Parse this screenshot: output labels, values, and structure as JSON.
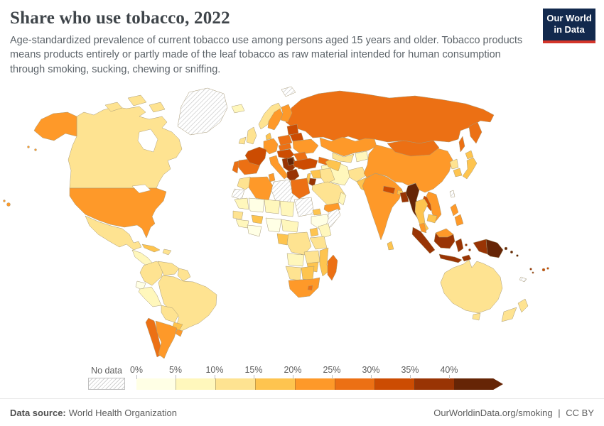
{
  "header": {
    "title": "Share who use tobacco, 2022",
    "subtitle": "Age-standardized prevalence of current tobacco use among persons aged 15 years and older. Tobacco products means products entirely or partly made of the leaf tobacco as raw material intended for human consumption through smoking, sucking, chewing or sniffing.",
    "logo": {
      "line1": "Our World",
      "line2": "in Data",
      "bg_color": "#12294d",
      "accent_color": "#d4352a"
    }
  },
  "legend": {
    "no_data_label": "No data"
  },
  "footer": {
    "source_label": "Data source:",
    "source_value": "World Health Organization",
    "link": "OurWorldinData.org/smoking",
    "separator": "|",
    "license": "CC BY"
  },
  "chart_data": {
    "type": "choropleth_map",
    "title": "Share who use tobacco, 2022",
    "year": "2022",
    "unit": "%",
    "legend_tick_labels": [
      "0%",
      "5%",
      "10%",
      "15%",
      "20%",
      "25%",
      "30%",
      "35%",
      "40%"
    ],
    "legend_bins": [
      {
        "range": "0-5%",
        "color": "#FFFFE5"
      },
      {
        "range": "5-10%",
        "color": "#FFF7BC"
      },
      {
        "range": "10-15%",
        "color": "#FEE391"
      },
      {
        "range": "15-20%",
        "color": "#FEC44F"
      },
      {
        "range": "20-25%",
        "color": "#FE9929"
      },
      {
        "range": "25-30%",
        "color": "#EC7014"
      },
      {
        "range": "30-35%",
        "color": "#CC4C02"
      },
      {
        "range": "35-40%",
        "color": "#993404"
      },
      {
        "range": "40%+",
        "color": "#662506"
      }
    ],
    "palette": {
      "0-5%": "#FFFFE5",
      "5-10%": "#FFF7BC",
      "10-15%": "#FEE391",
      "15-20%": "#FEC44F",
      "20-25%": "#FE9929",
      "25-30%": "#EC7014",
      "30-35%": "#CC4C02",
      "35-40%": "#993404",
      "40%+": "#662506"
    },
    "countries": {
      "greenland": "no-data",
      "canada": "10-15%",
      "united-states": "20-25%",
      "mexico": "10-15%",
      "central-america": "5-10%",
      "cuba": "15-20%",
      "hispaniola": "10-15%",
      "colombia": "10-15%",
      "venezuela": "10-15%",
      "guyanas": "10-15%",
      "ecuador": "0-5%",
      "peru": "5-10%",
      "brazil": "10-15%",
      "bolivia": "10-15%",
      "paraguay": "15-20%",
      "chile": "25-30%",
      "argentina": "20-25%",
      "uruguay": "20-25%",
      "iceland": "5-10%",
      "united-kingdom": "10-15%",
      "ireland": "10-15%",
      "norway": "10-15%",
      "sweden": "20-25%",
      "finland": "20-25%",
      "denmark": "15-20%",
      "baltics": "30-35%",
      "germany": "20-25%",
      "poland": "25-30%",
      "belarus": "30-35%",
      "ukraine": "20-25%",
      "france": "30-35%",
      "spain": "25-30%",
      "portugal": "25-30%",
      "italy": "20-25%",
      "czech-slovakia": "25-30%",
      "austria-hungary": "30-35%",
      "balkans": "35-40%",
      "serbia": "40%+",
      "romania": "25-30%",
      "bulgaria": "30-35%",
      "greece": "35-40%",
      "russia": "25-30%",
      "svalbard": "no-data",
      "turkey": "30-35%",
      "caucasus": "25-30%",
      "syria": "15-20%",
      "lebanon-israel": "15-20%",
      "jordan": "35-40%",
      "iraq": "10-15%",
      "saudi-arabia": "10-15%",
      "yemen": "20-25%",
      "oman": "5-10%",
      "iran": "5-10%",
      "kazakhstan": "20-25%",
      "uzbekistan": "10-15%",
      "turkmenistan": "15-20%",
      "kyrgyzstan-tajikistan": "5-10%",
      "afghanistan": "10-15%",
      "pakistan": "15-20%",
      "india": "20-25%",
      "nepal": "30-35%",
      "bhutan": "15-20%",
      "bangladesh": "35-40%",
      "sri-lanka": "15-20%",
      "myanmar": "40%+",
      "mongolia": "25-30%",
      "china": "20-25%",
      "north-korea": "10-15%",
      "south-korea": "15-20%",
      "japan": "15-20%",
      "taiwan": "no-data",
      "thailand": "15-20%",
      "laos": "30-35%",
      "vietnam": "20-25%",
      "cambodia": "15-20%",
      "malaysia": "20-25%",
      "philippines": "20-25%",
      "indonesia": "35-40%",
      "papua-new-guinea": "40%+",
      "timor-leste": "35-40%",
      "solomon-islands": "40%+",
      "vanuatu": "35-40%",
      "fiji": "30-35%",
      "new-caledonia": "no-data",
      "morocco": "10-15%",
      "western-sahara": "no-data",
      "algeria": "20-25%",
      "tunisia": "20-25%",
      "libya": "no-data",
      "egypt": "25-30%",
      "mauritania": "5-10%",
      "mali": "0-5%",
      "niger": "5-10%",
      "chad": "5-10%",
      "sudan": "no-data",
      "eritrea": "15-20%",
      "ethiopia": "0-5%",
      "somalia": "no-data",
      "senegal": "10-15%",
      "guinea": "5-10%",
      "ivory-coast-ghana": "0-5%",
      "burkina-faso": "15-20%",
      "nigeria": "0-5%",
      "cameroon": "5-10%",
      "gabon-congo": "15-20%",
      "dr-congo": "10-15%",
      "uganda": "15-20%",
      "kenya": "5-10%",
      "tanzania": "10-15%",
      "angola": "5-10%",
      "zambia": "10-15%",
      "zimbabwe": "15-20%",
      "mozambique": "15-20%",
      "namibia": "10-15%",
      "botswana": "15-20%",
      "south-africa": "20-25%",
      "lesotho": "25-30%",
      "madagascar": "25-30%",
      "australia": "10-15%",
      "new-zealand": "10-15%"
    }
  }
}
